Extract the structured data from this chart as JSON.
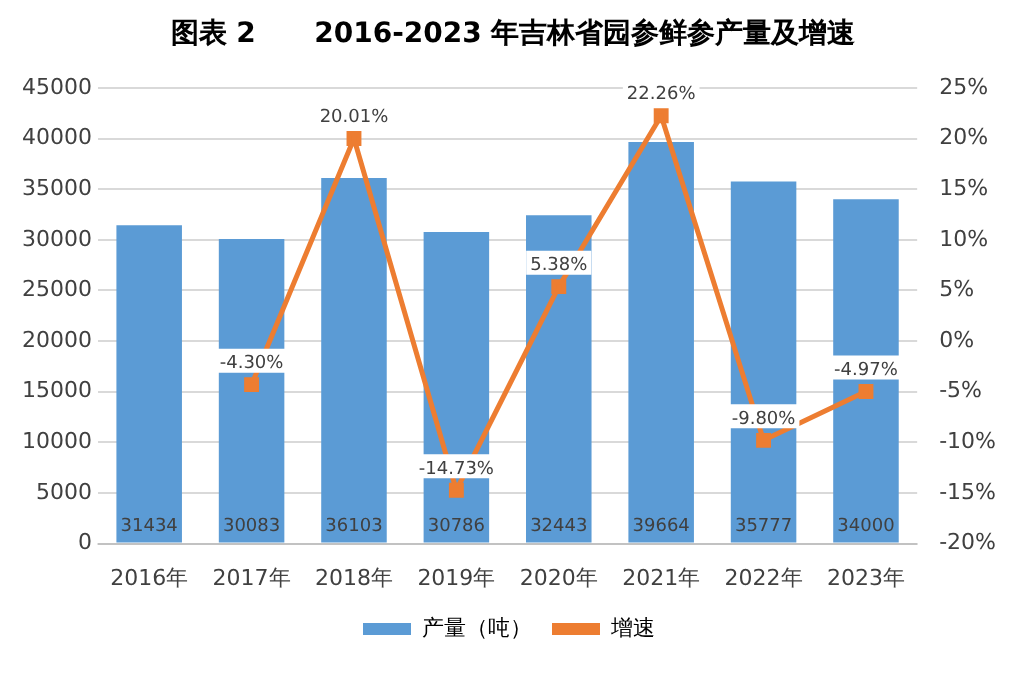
{
  "chart_data": {
    "type": "bar",
    "title": "图表 2      2016-2023 年吉林省园参鲜参产量及增速",
    "categories": [
      "2016年",
      "2017年",
      "2018年",
      "2019年",
      "2020年",
      "2021年",
      "2022年",
      "2023年"
    ],
    "series": [
      {
        "name": "产量（吨）",
        "color": "#5b9bd5",
        "values": [
          31434,
          30083,
          36103,
          30786,
          32443,
          39664,
          35777,
          34000
        ],
        "value_labels": [
          "31434",
          "30083",
          "36103",
          "30786",
          "32443",
          "39664",
          "35777",
          "34000"
        ]
      },
      {
        "name": "增速",
        "type": "line",
        "axis": "y2",
        "color": "#ed7d31",
        "values": [
          null,
          -4.3,
          20.01,
          -14.73,
          5.38,
          22.26,
          -9.8,
          -4.97
        ],
        "value_labels": [
          null,
          "-4.30%",
          "20.01%",
          "-14.73%",
          "5.38%",
          "22.26%",
          "-9.80%",
          "-4.97%"
        ]
      }
    ],
    "ylim": [
      0,
      45000
    ],
    "yticks": [
      0,
      5000,
      10000,
      15000,
      20000,
      25000,
      30000,
      35000,
      40000,
      45000
    ],
    "y2lim": [
      -20,
      25
    ],
    "y2ticks": [
      {
        "value": -20,
        "label": "-20%"
      },
      {
        "value": -15,
        "label": "-15%"
      },
      {
        "value": -10,
        "label": "-10%"
      },
      {
        "value": -5,
        "label": "-5%"
      },
      {
        "value": 0,
        "label": "0%"
      },
      {
        "value": 5,
        "label": "5%"
      },
      {
        "value": 10,
        "label": "10%"
      },
      {
        "value": 15,
        "label": "15%"
      },
      {
        "value": 20,
        "label": "20%"
      },
      {
        "value": 25,
        "label": "25%"
      }
    ],
    "grid": "y",
    "legend": "bottom",
    "marker": "square",
    "line_style": "solid"
  }
}
